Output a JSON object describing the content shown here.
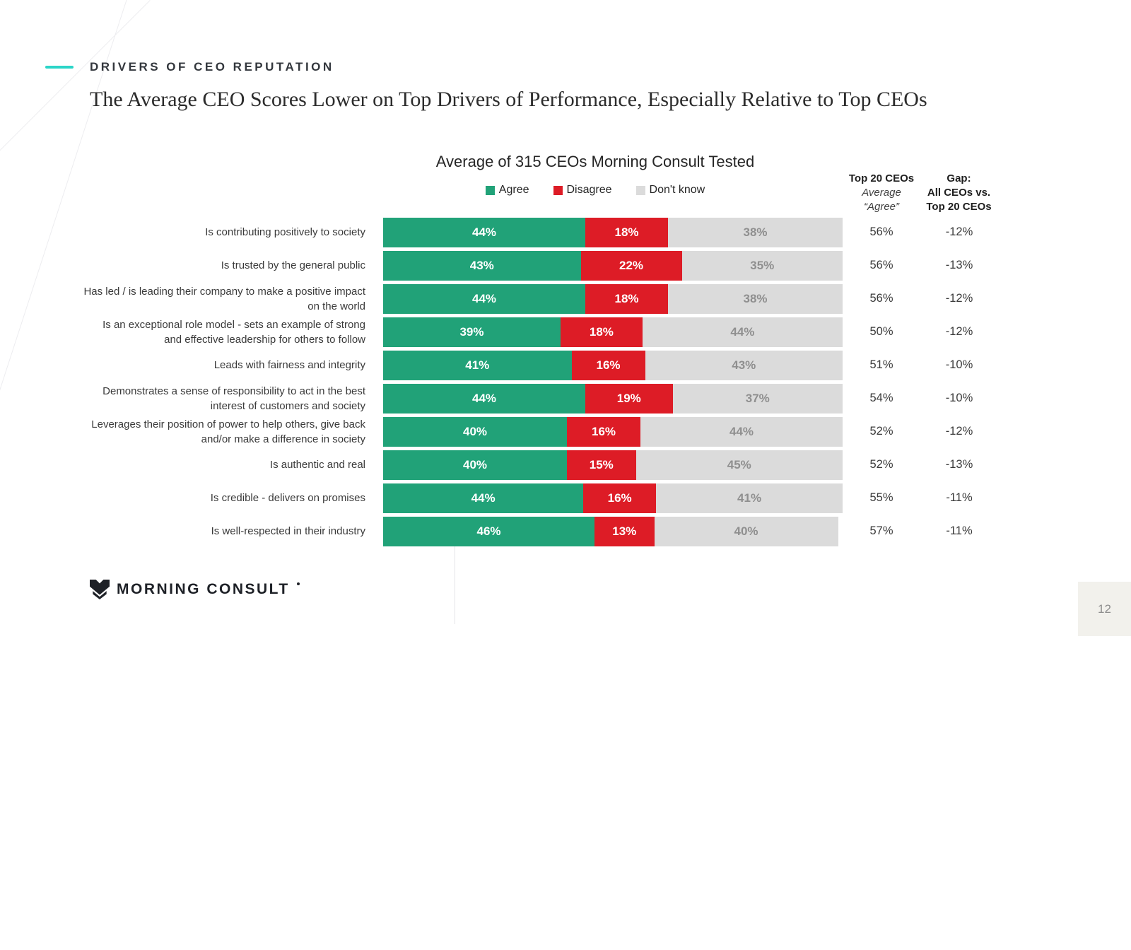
{
  "slide": {
    "eyebrow": "DRIVERS OF CEO REPUTATION",
    "title": "The Average CEO Scores Lower on Top Drivers of Performance, Especially Relative to Top CEOs",
    "logo_text": "MORNING CONSULT",
    "page_number": "12"
  },
  "columns": {
    "top20_header": {
      "line1": "Top 20 CEOs",
      "line2": "Average",
      "line3": "“Agree”"
    },
    "gap_header": {
      "line1": "Gap:",
      "line2": "All CEOs vs.",
      "line3": "Top 20 CEOs"
    }
  },
  "chart_data": {
    "type": "bar",
    "stacked": true,
    "orientation": "horizontal",
    "title": "Average of 315 CEOs Morning Consult Tested",
    "legend": [
      "Agree",
      "Disagree",
      "Don't know"
    ],
    "legend_position": "top-center",
    "xlim": [
      0,
      100
    ],
    "unit": "%",
    "colors": {
      "agree": "#21A278",
      "disagree": "#DD1C26",
      "dont_know": "#DBDBDB",
      "accent_dash": "#2BD5C8"
    },
    "categories": [
      "Is contributing positively to society",
      "Is trusted by the general public",
      "Has led / is leading their company to make a positive impact on the world",
      "Is an exceptional role model - sets an example of strong and effective leadership for others to follow",
      "Leads with fairness and integrity",
      "Demonstrates a sense of responsibility to act in the best interest of customers and society",
      "Leverages their position of power to help others, give back and/or make a difference in society",
      "Is authentic and real",
      "Is credible - delivers on promises",
      "Is well-respected in their industry"
    ],
    "series": [
      {
        "name": "Agree",
        "values": [
          44,
          43,
          44,
          39,
          41,
          44,
          40,
          40,
          44,
          46
        ]
      },
      {
        "name": "Disagree",
        "values": [
          18,
          22,
          18,
          18,
          16,
          19,
          16,
          15,
          16,
          13
        ]
      },
      {
        "name": "Don't know",
        "values": [
          38,
          35,
          38,
          44,
          43,
          37,
          44,
          45,
          41,
          40
        ]
      }
    ],
    "extra_columns": [
      {
        "name": "Top 20 CEOs Average \"Agree\"",
        "values": [
          "56%",
          "56%",
          "56%",
          "50%",
          "51%",
          "54%",
          "52%",
          "52%",
          "55%",
          "57%"
        ]
      },
      {
        "name": "Gap: All CEOs vs. Top 20 CEOs",
        "values": [
          "-12%",
          "-13%",
          "-12%",
          "-12%",
          "-10%",
          "-10%",
          "-12%",
          "-13%",
          "-11%",
          "-11%"
        ]
      }
    ]
  }
}
